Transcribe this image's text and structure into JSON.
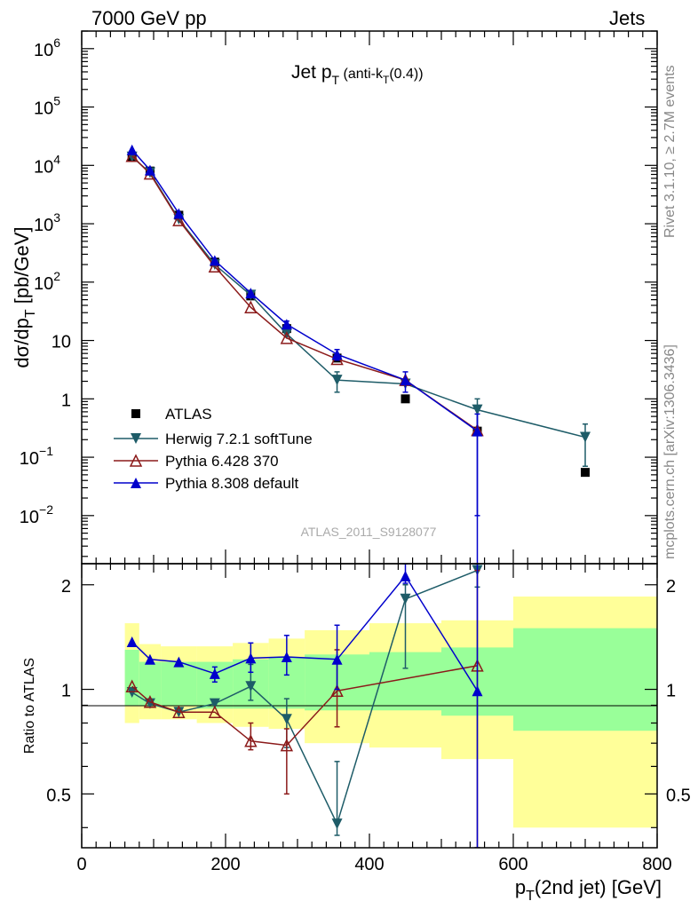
{
  "header": {
    "left": "7000 GeV pp",
    "right": "Jets",
    "side_top": "Rivet 3.1.10, ≥ 2.7M events",
    "side_bottom": "mcplots.cern.ch [arXiv:1306.3436]"
  },
  "chart_data": [
    {
      "type": "line",
      "title": "Jet p_T (anti-k_T(0.4))",
      "ylabel": "dσ/dp_T [pb/GeV]",
      "yscale": "log",
      "ylim": [
        0.0015,
        2000000
      ],
      "xlim": [
        0,
        800
      ],
      "y_tick_labels": [
        "10^-2",
        "10^-1",
        "1",
        "10",
        "10^2",
        "10^3",
        "10^4",
        "10^5",
        "10^6"
      ],
      "watermark": "ATLAS_2011_S9128077",
      "legend_position": "center-left",
      "series": [
        {
          "name": "ATLAS",
          "color": "#000000",
          "marker": "square",
          "x": [
            70,
            95,
            135,
            185,
            235,
            285,
            355,
            450,
            550,
            700
          ],
          "y": [
            14000,
            8000,
            1400,
            220,
            58,
            16,
            5.0,
            1.0,
            0.28,
            0.055
          ]
        },
        {
          "name": "Herwig 7.2.1 softTune",
          "color": "#1e5c68",
          "marker": "triangle-down",
          "x": [
            70,
            95,
            135,
            185,
            235,
            285,
            355,
            450,
            550,
            700
          ],
          "y": [
            14000,
            7500,
            1200,
            200,
            60,
            13,
            2.1,
            1.8,
            0.65,
            0.22
          ],
          "yerr": [
            0,
            0,
            0,
            0,
            0,
            0,
            0.8,
            0.0,
            0.35,
            0.15
          ]
        },
        {
          "name": "Pythia 6.428 370",
          "color": "#8b1a1a",
          "marker": "triangle-up-open",
          "x": [
            70,
            95,
            135,
            185,
            235,
            285,
            355,
            450,
            550
          ],
          "y": [
            14500,
            7200,
            1150,
            185,
            37,
            11,
            4.8,
            2.1,
            0.29
          ]
        },
        {
          "name": "Pythia 8.308 default",
          "color": "#0000cc",
          "marker": "triangle-up",
          "x": [
            70,
            95,
            135,
            185,
            235,
            285,
            355,
            450,
            550
          ],
          "y": [
            18500,
            8300,
            1500,
            235,
            65,
            19,
            5.8,
            2.1,
            0.28
          ],
          "yerr": [
            0,
            0,
            0,
            0,
            0,
            2.5,
            1.2,
            0.8,
            0.27
          ]
        }
      ]
    },
    {
      "type": "line",
      "ylabel": "Ratio to ATLAS",
      "xlabel": "p_T(2nd jet) [GeV]",
      "ylim": [
        0.35,
        2.3
      ],
      "xlim": [
        0,
        800
      ],
      "x_ticks": [
        0,
        200,
        400,
        600,
        800
      ],
      "y_ticks": [
        0.5,
        1,
        2
      ],
      "bands": {
        "x_edges": [
          60,
          80,
          110,
          160,
          210,
          260,
          310,
          400,
          500,
          600,
          800
        ],
        "inner": [
          [
            0.9,
            1.3
          ],
          [
            0.9,
            1.2
          ],
          [
            0.9,
            1.2
          ],
          [
            0.88,
            1.2
          ],
          [
            0.88,
            1.22
          ],
          [
            0.88,
            1.24
          ],
          [
            0.87,
            1.26
          ],
          [
            0.87,
            1.28
          ],
          [
            0.84,
            1.32
          ],
          [
            0.76,
            1.5
          ]
        ],
        "outer": [
          [
            0.8,
            1.55
          ],
          [
            0.82,
            1.35
          ],
          [
            0.82,
            1.33
          ],
          [
            0.8,
            1.33
          ],
          [
            0.78,
            1.36
          ],
          [
            0.77,
            1.4
          ],
          [
            0.7,
            1.48
          ],
          [
            0.68,
            1.55
          ],
          [
            0.63,
            1.58
          ],
          [
            0.4,
            1.85
          ]
        ]
      },
      "series": [
        {
          "name": "Herwig 7.2.1 softTune",
          "color": "#1e5c68",
          "marker": "triangle-down",
          "x": [
            70,
            95,
            135,
            185,
            235,
            285,
            355,
            450,
            550
          ],
          "y": [
            0.98,
            0.91,
            0.86,
            0.91,
            1.02,
            0.82,
            0.41,
            1.82,
            2.2
          ],
          "ylo": [
            0,
            0,
            0,
            0,
            0.93,
            0.68,
            0.38,
            1.15,
            1.97
          ],
          "yhi": [
            0,
            0,
            0,
            0,
            1.18,
            0.94,
            0.62,
            2.0,
            2.3
          ]
        },
        {
          "name": "Pythia 6.428 370",
          "color": "#8b1a1a",
          "marker": "triangle-up-open",
          "x": [
            70,
            95,
            135,
            185,
            235,
            285,
            355,
            550
          ],
          "y": [
            1.02,
            0.92,
            0.86,
            0.86,
            0.71,
            0.69,
            0.99,
            1.17
          ],
          "ylo": [
            0,
            0,
            0,
            0,
            0.67,
            0.5,
            0.78,
            0.35
          ],
          "yhi": [
            0,
            0,
            0,
            0,
            0.8,
            0.77,
            1.3,
            2.2
          ]
        },
        {
          "name": "Pythia 8.308 default",
          "color": "#0000cc",
          "marker": "triangle-up",
          "x": [
            70,
            95,
            135,
            185,
            235,
            285,
            355,
            450,
            550
          ],
          "y": [
            1.37,
            1.22,
            1.2,
            1.11,
            1.23,
            1.24,
            1.22,
            2.12,
            0.99
          ],
          "ylo": [
            0,
            0,
            0,
            1.05,
            1.12,
            1.1,
            1.0,
            2.02,
            0.35
          ],
          "yhi": [
            0,
            0,
            0,
            1.16,
            1.36,
            1.43,
            1.53,
            2.3,
            2.3
          ]
        }
      ]
    }
  ]
}
